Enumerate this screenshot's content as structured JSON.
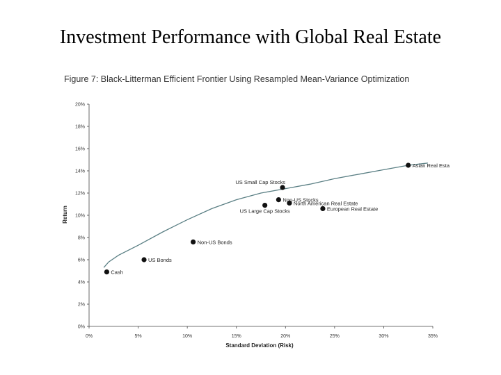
{
  "slide": {
    "title": "Investment Performance with Global Real Estate"
  },
  "chart_data": {
    "type": "scatter",
    "title": "Figure 7: Black-Litterman Efficient Frontier Using Resampled Mean-Variance Optimization",
    "xlabel": "Standard Deviation (Risk)",
    "ylabel": "Return",
    "xlim": [
      0,
      35
    ],
    "ylim": [
      0,
      20
    ],
    "x_ticks": [
      "0%",
      "5%",
      "10%",
      "15%",
      "20%",
      "25%",
      "30%",
      "35%"
    ],
    "y_ticks": [
      "0%",
      "2%",
      "4%",
      "6%",
      "8%",
      "10%",
      "12%",
      "14%",
      "16%",
      "18%",
      "20%"
    ],
    "grid": false,
    "frontier": {
      "x": [
        1.5,
        2.0,
        3.0,
        5.0,
        7.5,
        10.0,
        12.5,
        15.0,
        17.5,
        20.0,
        22.5,
        25.0,
        27.5,
        30.0,
        32.5,
        34.5
      ],
      "y": [
        5.3,
        5.8,
        6.4,
        7.3,
        8.5,
        9.6,
        10.6,
        11.4,
        12.0,
        12.4,
        12.8,
        13.3,
        13.7,
        14.1,
        14.5,
        14.7
      ]
    },
    "points": [
      {
        "label": "Cash",
        "x": 1.8,
        "y": 4.9,
        "anchor": "right"
      },
      {
        "label": "US Bonds",
        "x": 5.6,
        "y": 6.0,
        "anchor": "right"
      },
      {
        "label": "Non-US Bonds",
        "x": 10.6,
        "y": 7.6,
        "anchor": "right"
      },
      {
        "label": "US Small Cap Stocks",
        "x": 19.7,
        "y": 12.5,
        "anchor": "above-left"
      },
      {
        "label": "Non-US Stocks",
        "x": 19.3,
        "y": 11.4,
        "anchor": "right"
      },
      {
        "label": "North American Real Estate",
        "x": 20.4,
        "y": 11.1,
        "anchor": "right"
      },
      {
        "label": "US Large Cap Stocks",
        "x": 17.9,
        "y": 10.9,
        "anchor": "below-center"
      },
      {
        "label": "European Real Estate",
        "x": 23.8,
        "y": 10.6,
        "anchor": "right"
      },
      {
        "label": "Asian Real Esta",
        "x": 32.5,
        "y": 14.5,
        "anchor": "right"
      }
    ]
  }
}
